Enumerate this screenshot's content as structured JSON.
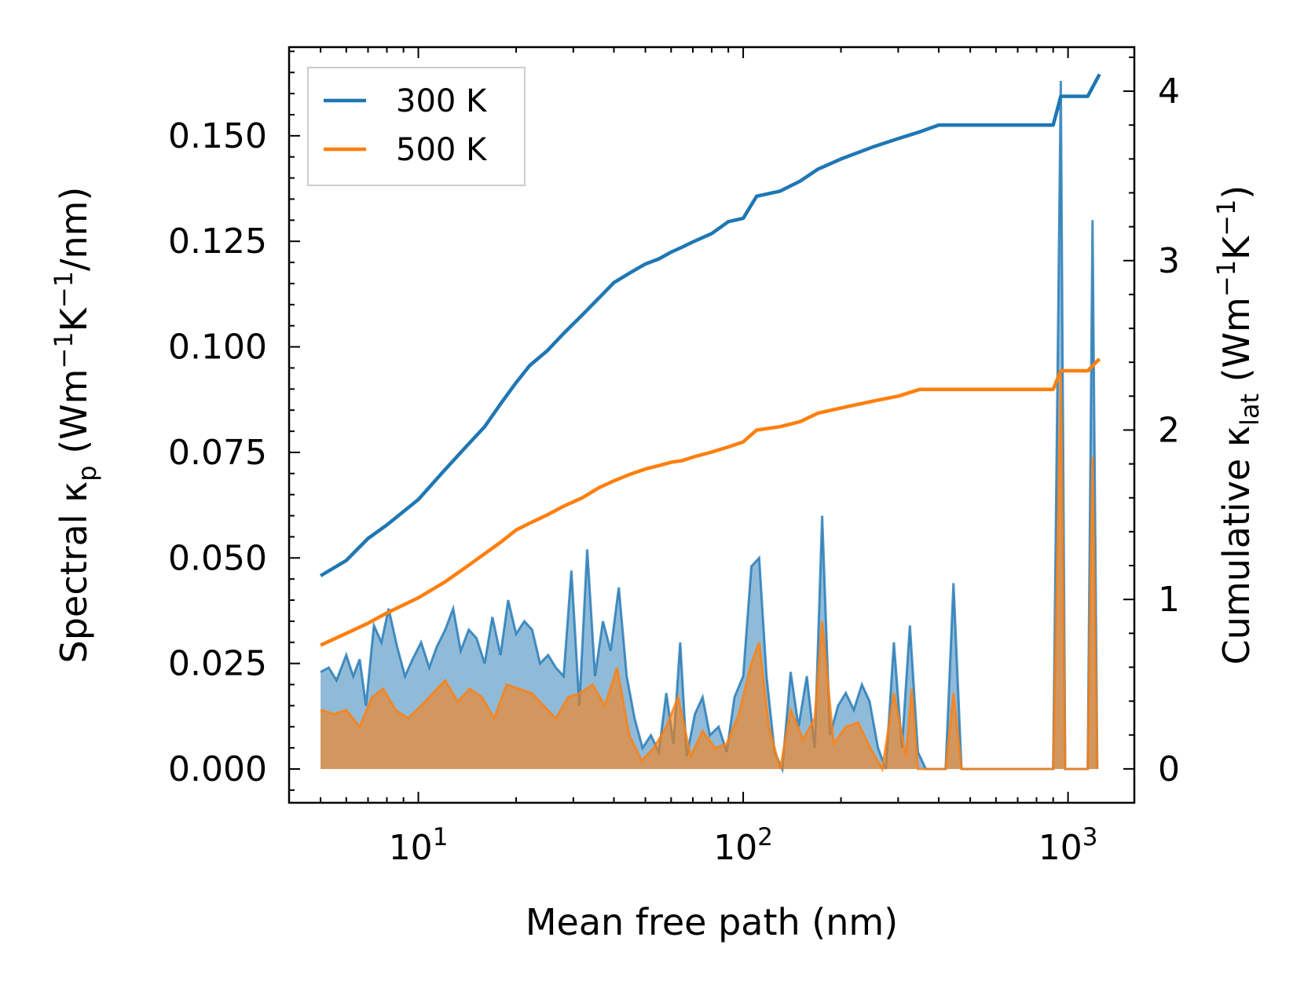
{
  "chart_data": {
    "type": "line",
    "xscale": "log",
    "xlabel": "Mean free path (nm)",
    "ylabel_left": {
      "main": "Spectral κ",
      "sub": "p",
      "units_pre": " (Wm",
      "exp1": "−1",
      "units_mid": "K",
      "exp2": "−1",
      "units_post": "/nm)"
    },
    "ylabel_right": {
      "main": "Cumulative κ",
      "sub": "lat",
      "units_pre": " (Wm",
      "exp1": "−1",
      "units_mid": "K",
      "exp2": "−1",
      "units_post": ")"
    },
    "xlim": [
      4,
      1600
    ],
    "ylim_left": [
      -0.008,
      0.171
    ],
    "ylim_right": [
      -0.2,
      4.26
    ],
    "x_ticks": [
      {
        "value": 10,
        "base": "10",
        "exp": "1"
      },
      {
        "value": 100,
        "base": "10",
        "exp": "2"
      },
      {
        "value": 1000,
        "base": "10",
        "exp": "3"
      }
    ],
    "y_left_ticks": [
      {
        "value": 0.0,
        "label": "0.000"
      },
      {
        "value": 0.025,
        "label": "0.025"
      },
      {
        "value": 0.05,
        "label": "0.050"
      },
      {
        "value": 0.075,
        "label": "0.075"
      },
      {
        "value": 0.1,
        "label": "0.100"
      },
      {
        "value": 0.125,
        "label": "0.125"
      },
      {
        "value": 0.15,
        "label": "0.150"
      }
    ],
    "y_right_ticks": [
      {
        "value": 0,
        "label": "0"
      },
      {
        "value": 1,
        "label": "1"
      },
      {
        "value": 2,
        "label": "2"
      },
      {
        "value": 3,
        "label": "3"
      },
      {
        "value": 4,
        "label": "4"
      }
    ],
    "legend": {
      "position": "top-left"
    },
    "series": [
      {
        "name": "300 K",
        "color": "#1f77b4",
        "cumulative": [
          [
            5,
            1.14
          ],
          [
            6,
            1.23
          ],
          [
            7,
            1.36
          ],
          [
            8,
            1.44
          ],
          [
            10,
            1.59
          ],
          [
            12,
            1.76
          ],
          [
            14,
            1.9
          ],
          [
            16,
            2.02
          ],
          [
            18,
            2.16
          ],
          [
            20,
            2.28
          ],
          [
            22,
            2.38
          ],
          [
            25,
            2.47
          ],
          [
            28,
            2.57
          ],
          [
            32,
            2.68
          ],
          [
            36,
            2.78
          ],
          [
            40,
            2.87
          ],
          [
            45,
            2.93
          ],
          [
            50,
            2.98
          ],
          [
            55,
            3.01
          ],
          [
            60,
            3.05
          ],
          [
            65,
            3.08
          ],
          [
            70,
            3.11
          ],
          [
            80,
            3.16
          ],
          [
            90,
            3.23
          ],
          [
            100,
            3.25
          ],
          [
            110,
            3.38
          ],
          [
            130,
            3.41
          ],
          [
            150,
            3.47
          ],
          [
            170,
            3.54
          ],
          [
            200,
            3.6
          ],
          [
            250,
            3.67
          ],
          [
            300,
            3.72
          ],
          [
            350,
            3.76
          ],
          [
            400,
            3.8
          ],
          [
            900,
            3.8
          ],
          [
            950,
            3.97
          ],
          [
            1150,
            3.97
          ],
          [
            1250,
            4.1
          ]
        ],
        "spectral": [
          [
            5,
            0.023
          ],
          [
            5.3,
            0.024
          ],
          [
            5.6,
            0.021
          ],
          [
            6,
            0.027
          ],
          [
            6.3,
            0.022
          ],
          [
            6.6,
            0.026
          ],
          [
            6.9,
            0.015
          ],
          [
            7.3,
            0.034
          ],
          [
            7.7,
            0.03
          ],
          [
            8.1,
            0.038
          ],
          [
            8.6,
            0.029
          ],
          [
            9.1,
            0.022
          ],
          [
            9.6,
            0.026
          ],
          [
            10.2,
            0.03
          ],
          [
            10.8,
            0.024
          ],
          [
            11.4,
            0.029
          ],
          [
            12.1,
            0.033
          ],
          [
            12.8,
            0.038
          ],
          [
            13.5,
            0.028
          ],
          [
            14.3,
            0.033
          ],
          [
            15.1,
            0.031
          ],
          [
            16,
            0.025
          ],
          [
            16.9,
            0.036
          ],
          [
            17.9,
            0.027
          ],
          [
            18.9,
            0.04
          ],
          [
            20,
            0.032
          ],
          [
            21.2,
            0.035
          ],
          [
            22.4,
            0.033
          ],
          [
            23.7,
            0.025
          ],
          [
            25.1,
            0.027
          ],
          [
            26.5,
            0.024
          ],
          [
            28,
            0.022
          ],
          [
            29.6,
            0.047
          ],
          [
            31.3,
            0.015
          ],
          [
            33.1,
            0.052
          ],
          [
            35,
            0.022
          ],
          [
            37,
            0.035
          ],
          [
            39.1,
            0.028
          ],
          [
            41.4,
            0.043
          ],
          [
            43.8,
            0.022
          ],
          [
            46.3,
            0.012
          ],
          [
            49,
            0.005
          ],
          [
            52,
            0.008
          ],
          [
            55,
            0.004
          ],
          [
            58,
            0.018
          ],
          [
            61,
            0.006
          ],
          [
            64,
            0.03
          ],
          [
            67,
            0.003
          ],
          [
            71,
            0.013
          ],
          [
            75,
            0.017
          ],
          [
            79,
            0.008
          ],
          [
            84,
            0.01
          ],
          [
            89,
            0.004
          ],
          [
            94,
            0.017
          ],
          [
            100,
            0.022
          ],
          [
            106,
            0.048
          ],
          [
            112,
            0.05
          ],
          [
            118,
            0.022
          ],
          [
            125,
            0.004
          ],
          [
            132,
            0.0
          ],
          [
            140,
            0.023
          ],
          [
            148,
            0.01
          ],
          [
            157,
            0.022
          ],
          [
            166,
            0.005
          ],
          [
            175,
            0.06
          ],
          [
            185,
            0.008
          ],
          [
            196,
            0.015
          ],
          [
            207,
            0.018
          ],
          [
            219,
            0.014
          ],
          [
            232,
            0.02
          ],
          [
            245,
            0.016
          ],
          [
            260,
            0.005
          ],
          [
            275,
            0.0
          ],
          [
            291,
            0.03
          ],
          [
            308,
            0.005
          ],
          [
            326,
            0.034
          ],
          [
            345,
            0.004
          ],
          [
            365,
            0.0
          ],
          [
            420,
            0.0
          ],
          [
            444,
            0.044
          ],
          [
            470,
            0.0
          ],
          [
            900,
            0.0
          ],
          [
            950,
            0.163
          ],
          [
            980,
            0.0
          ],
          [
            1150,
            0.0
          ],
          [
            1190,
            0.13
          ],
          [
            1230,
            0.0
          ]
        ]
      },
      {
        "name": "500 K",
        "color": "#ff7f0e",
        "cumulative": [
          [
            5,
            0.73
          ],
          [
            6,
            0.8
          ],
          [
            7,
            0.86
          ],
          [
            8,
            0.92
          ],
          [
            10,
            1.01
          ],
          [
            12,
            1.1
          ],
          [
            14,
            1.19
          ],
          [
            16,
            1.27
          ],
          [
            18,
            1.34
          ],
          [
            20,
            1.41
          ],
          [
            22,
            1.45
          ],
          [
            25,
            1.5
          ],
          [
            28,
            1.55
          ],
          [
            32,
            1.6
          ],
          [
            36,
            1.66
          ],
          [
            40,
            1.7
          ],
          [
            45,
            1.74
          ],
          [
            50,
            1.77
          ],
          [
            55,
            1.79
          ],
          [
            60,
            1.81
          ],
          [
            65,
            1.82
          ],
          [
            70,
            1.84
          ],
          [
            80,
            1.87
          ],
          [
            90,
            1.9
          ],
          [
            100,
            1.93
          ],
          [
            110,
            2.0
          ],
          [
            130,
            2.02
          ],
          [
            150,
            2.05
          ],
          [
            170,
            2.1
          ],
          [
            200,
            2.13
          ],
          [
            250,
            2.17
          ],
          [
            300,
            2.2
          ],
          [
            350,
            2.24
          ],
          [
            400,
            2.24
          ],
          [
            900,
            2.24
          ],
          [
            950,
            2.35
          ],
          [
            1150,
            2.35
          ],
          [
            1250,
            2.42
          ]
        ],
        "spectral": [
          [
            5,
            0.014
          ],
          [
            5.5,
            0.013
          ],
          [
            6,
            0.014
          ],
          [
            6.6,
            0.01
          ],
          [
            7.2,
            0.017
          ],
          [
            7.8,
            0.019
          ],
          [
            8.5,
            0.014
          ],
          [
            9.3,
            0.012
          ],
          [
            10.2,
            0.015
          ],
          [
            11.1,
            0.018
          ],
          [
            12.1,
            0.021
          ],
          [
            13.2,
            0.016
          ],
          [
            14.4,
            0.019
          ],
          [
            15.7,
            0.017
          ],
          [
            17.1,
            0.012
          ],
          [
            18.7,
            0.02
          ],
          [
            20.4,
            0.019
          ],
          [
            22.3,
            0.018
          ],
          [
            24.3,
            0.015
          ],
          [
            26.5,
            0.012
          ],
          [
            28.9,
            0.017
          ],
          [
            31.5,
            0.018
          ],
          [
            34.4,
            0.02
          ],
          [
            37.5,
            0.015
          ],
          [
            40.9,
            0.024
          ],
          [
            44.6,
            0.008
          ],
          [
            48.7,
            0.002
          ],
          [
            53.1,
            0.005
          ],
          [
            58,
            0.01
          ],
          [
            63,
            0.017
          ],
          [
            69,
            0.003
          ],
          [
            75,
            0.009
          ],
          [
            82,
            0.005
          ],
          [
            89,
            0.006
          ],
          [
            97,
            0.013
          ],
          [
            106,
            0.025
          ],
          [
            112,
            0.03
          ],
          [
            120,
            0.01
          ],
          [
            130,
            0.0
          ],
          [
            140,
            0.014
          ],
          [
            153,
            0.007
          ],
          [
            166,
            0.012
          ],
          [
            175,
            0.035
          ],
          [
            190,
            0.006
          ],
          [
            207,
            0.01
          ],
          [
            226,
            0.011
          ],
          [
            246,
            0.005
          ],
          [
            268,
            0.0
          ],
          [
            291,
            0.018
          ],
          [
            317,
            0.003
          ],
          [
            330,
            0.019
          ],
          [
            345,
            0.0
          ],
          [
            420,
            0.0
          ],
          [
            444,
            0.018
          ],
          [
            470,
            0.0
          ],
          [
            900,
            0.0
          ],
          [
            950,
            0.093
          ],
          [
            980,
            0.0
          ],
          [
            1150,
            0.0
          ],
          [
            1190,
            0.074
          ],
          [
            1230,
            0.0
          ]
        ]
      }
    ]
  }
}
